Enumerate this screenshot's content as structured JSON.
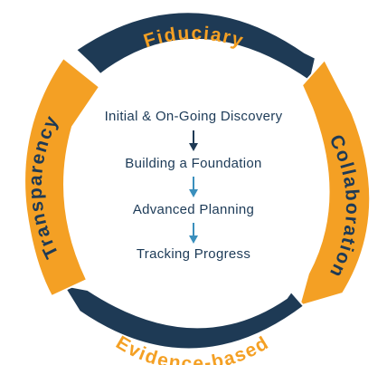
{
  "colors": {
    "navy": "#1e3a55",
    "orange": "#f4a024",
    "text_dark": "#1c3a57",
    "arrow_dark": "#1e3a55",
    "arrow_light": "#3a8fbd"
  },
  "cycle": {
    "top_label": "Fiduciary",
    "right_label": "Collaboration",
    "bottom_label": "Evidence-based",
    "left_label": "Transparency"
  },
  "steps": [
    {
      "label": "Initial & On-Going Discovery"
    },
    {
      "label": "Building a Foundation"
    },
    {
      "label": "Advanced Planning"
    },
    {
      "label": "Tracking Progress"
    }
  ]
}
